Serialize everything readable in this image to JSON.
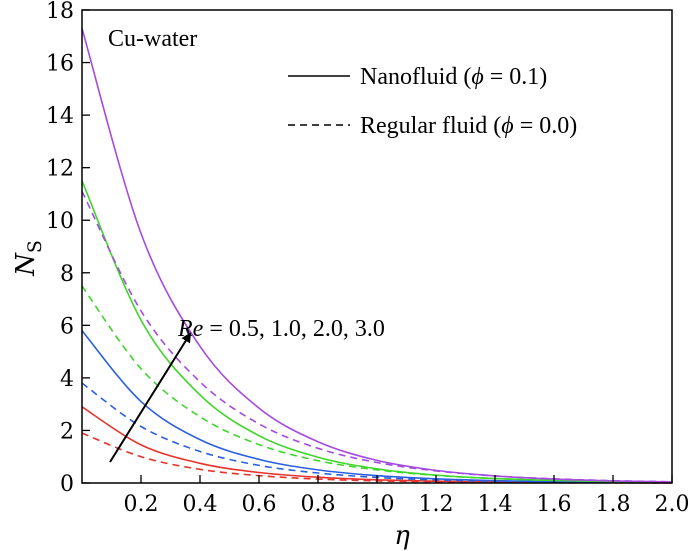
{
  "chart_data": {
    "type": "line",
    "xlabel": "η",
    "ylabel": "N",
    "ylabel_subscript": "S",
    "xlim": [
      0,
      2.0
    ],
    "ylim": [
      0,
      18
    ],
    "x_ticks": [
      "0.2",
      "0.4",
      "0.6",
      "0.8",
      "1.0",
      "1.2",
      "1.4",
      "1.6",
      "1.8",
      "2.0"
    ],
    "y_ticks": [
      "0",
      "2",
      "4",
      "6",
      "8",
      "10",
      "12",
      "14",
      "16",
      "18"
    ],
    "annotation_title": "Cu-water",
    "legend": [
      {
        "label_pre": "Nanofluid (",
        "symbol": "ϕ",
        "label_post": " = 0.1)",
        "style": "solid"
      },
      {
        "label_pre": "Regular fluid (",
        "symbol": "ϕ",
        "label_post": " = 0.0)",
        "style": "dashed"
      }
    ],
    "arrow_label_param": "Re",
    "arrow_label_values": " = 0.5, 1.0, 2.0, 3.0",
    "series": [
      {
        "re": 0.5,
        "color": "#e8332c",
        "style": "solid",
        "x": [
          0,
          0.2,
          0.4,
          0.6,
          0.8,
          1.0,
          1.2,
          1.4,
          1.6,
          1.8,
          2.0
        ],
        "y": [
          2.9,
          1.45,
          0.75,
          0.4,
          0.22,
          0.12,
          0.07,
          0.04,
          0.02,
          0.01,
          0.0
        ]
      },
      {
        "re": 0.5,
        "color": "#e8332c",
        "style": "dashed",
        "x": [
          0,
          0.2,
          0.4,
          0.6,
          0.8,
          1.0,
          1.2,
          1.4,
          1.6,
          1.8,
          2.0
        ],
        "y": [
          1.9,
          1.0,
          0.52,
          0.28,
          0.15,
          0.08,
          0.05,
          0.03,
          0.01,
          0.01,
          0.0
        ]
      },
      {
        "re": 1.0,
        "color": "#2a5fe0",
        "style": "solid",
        "x": [
          0,
          0.2,
          0.4,
          0.6,
          0.8,
          1.0,
          1.2,
          1.4,
          1.6,
          1.8,
          2.0
        ],
        "y": [
          5.8,
          3.1,
          1.65,
          0.9,
          0.5,
          0.28,
          0.16,
          0.09,
          0.05,
          0.03,
          0.01
        ]
      },
      {
        "re": 1.0,
        "color": "#2a5fe0",
        "style": "dashed",
        "x": [
          0,
          0.2,
          0.4,
          0.6,
          0.8,
          1.0,
          1.2,
          1.4,
          1.6,
          1.8,
          2.0
        ],
        "y": [
          3.8,
          2.15,
          1.2,
          0.67,
          0.38,
          0.21,
          0.12,
          0.07,
          0.04,
          0.02,
          0.01
        ]
      },
      {
        "re": 2.0,
        "color": "#3fd62a",
        "style": "solid",
        "x": [
          0,
          0.2,
          0.4,
          0.6,
          0.8,
          1.0,
          1.2,
          1.4,
          1.6,
          1.8,
          2.0
        ],
        "y": [
          11.5,
          6.2,
          3.35,
          1.8,
          0.98,
          0.54,
          0.3,
          0.17,
          0.1,
          0.06,
          0.03
        ]
      },
      {
        "re": 2.0,
        "color": "#3fd62a",
        "style": "dashed",
        "x": [
          0,
          0.2,
          0.4,
          0.6,
          0.8,
          1.0,
          1.2,
          1.4,
          1.6,
          1.8,
          2.0
        ],
        "y": [
          7.5,
          4.35,
          2.52,
          1.46,
          0.85,
          0.5,
          0.29,
          0.17,
          0.1,
          0.06,
          0.03
        ]
      },
      {
        "re": 3.0,
        "color": "#a64be0",
        "style": "solid",
        "x": [
          0,
          0.2,
          0.4,
          0.6,
          0.8,
          1.0,
          1.2,
          1.4,
          1.6,
          1.8,
          2.0
        ],
        "y": [
          17.3,
          9.5,
          5.2,
          2.85,
          1.57,
          0.86,
          0.48,
          0.27,
          0.15,
          0.08,
          0.04
        ]
      },
      {
        "re": 3.0,
        "color": "#a64be0",
        "style": "dashed",
        "x": [
          0,
          0.2,
          0.4,
          0.6,
          0.8,
          1.0,
          1.2,
          1.4,
          1.6,
          1.8,
          2.0
        ],
        "y": [
          11.1,
          6.55,
          3.85,
          2.25,
          1.32,
          0.78,
          0.46,
          0.27,
          0.16,
          0.09,
          0.05
        ]
      }
    ]
  }
}
